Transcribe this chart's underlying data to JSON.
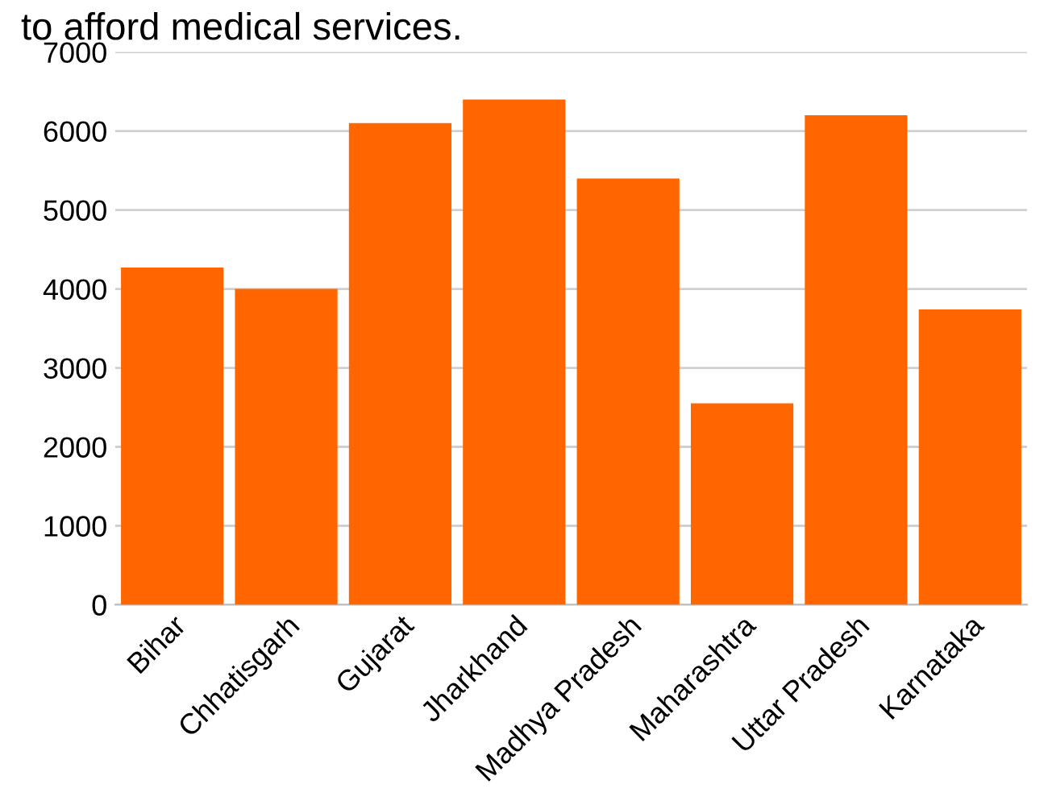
{
  "chart_data": {
    "type": "bar",
    "title": "to afford medical services.",
    "categories": [
      "Bihar",
      "Chhatisgarh",
      "Gujarat",
      "Jharkhand",
      "Madhya Pradesh",
      "Maharashtra",
      "Uttar Pradesh",
      "Karnataka"
    ],
    "values": [
      4270,
      4000,
      6100,
      6400,
      5400,
      2550,
      6200,
      3740
    ],
    "color": "#ff6600",
    "ylim": [
      0,
      7000
    ],
    "yticks": [
      0,
      1000,
      2000,
      3000,
      4000,
      5000,
      6000,
      7000
    ],
    "grid": "y"
  }
}
